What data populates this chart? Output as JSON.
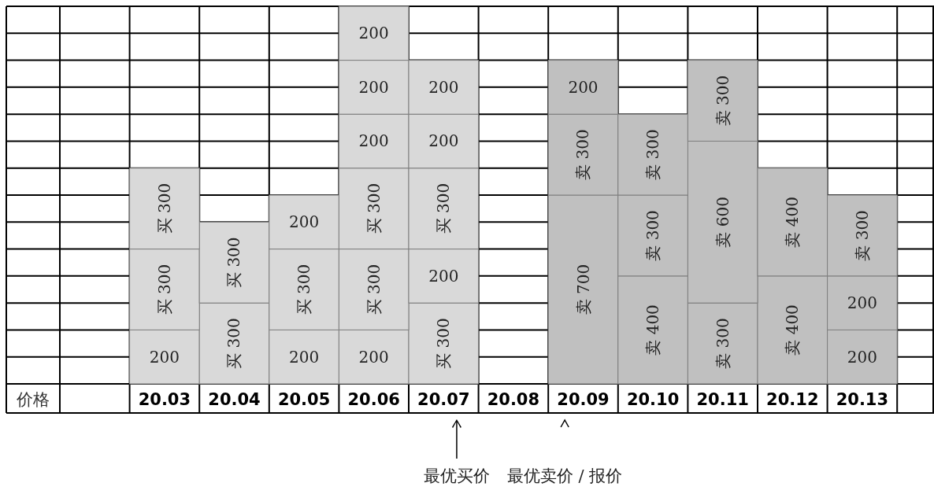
{
  "chart_data": {
    "type": "bar",
    "stacked": true,
    "xlabel": "价格",
    "grid": true,
    "tick_labels": "x",
    "categories": [
      null,
      "20.03",
      "20.04",
      "20.05",
      "20.06",
      "20.07",
      "20.08",
      "20.09",
      "20.10",
      "20.11",
      "20.12",
      "20.13",
      null
    ],
    "ylim": [
      0,
      1400
    ],
    "yticks": [
      {
        "value": 0,
        "label": null
      },
      {
        "value": 100,
        "label": null
      },
      {
        "value": 200,
        "label": null
      },
      {
        "value": 300,
        "label": null
      },
      {
        "value": 400,
        "label": null
      },
      {
        "value": 500,
        "label": null
      },
      {
        "value": 600,
        "label": null
      },
      {
        "value": 700,
        "label": null
      },
      {
        "value": 800,
        "label": null
      },
      {
        "value": 900,
        "label": null
      },
      {
        "value": 1000,
        "label": null
      },
      {
        "value": 1100,
        "label": null
      },
      {
        "value": 1200,
        "label": null
      },
      {
        "value": 1300,
        "label": null
      },
      {
        "value": 1400,
        "label": null
      }
    ],
    "series": [
      {
        "values": [
          null,
          200,
          300,
          200,
          200,
          300,
          null,
          700,
          400,
          300,
          400,
          200,
          null
        ],
        "value_labels": [
          null,
          "200",
          "买 300",
          "200",
          "200",
          "买 300",
          null,
          "卖 700",
          "卖 400",
          "卖 300",
          "卖 400",
          "200",
          null
        ],
        "colors": [
          null,
          "#d9d9d9",
          "#d9d9d9",
          "#d9d9d9",
          "#d9d9d9",
          "#d9d9d9",
          null,
          "#c0c0c0",
          "#c0c0c0",
          "#c0c0c0",
          "#c0c0c0",
          "#c0c0c0",
          null
        ]
      },
      {
        "values": [
          null,
          300,
          300,
          300,
          300,
          200,
          null,
          300,
          300,
          600,
          400,
          200,
          null
        ],
        "value_labels": [
          null,
          "买 300",
          "买 300",
          "买 300",
          "买 300",
          "200",
          null,
          "卖 300",
          "卖 300",
          "卖 600",
          "卖 400",
          "200",
          null
        ],
        "colors": [
          null,
          "#d9d9d9",
          "#d9d9d9",
          "#d9d9d9",
          "#d9d9d9",
          "#d9d9d9",
          null,
          "#c0c0c0",
          "#c0c0c0",
          "#c0c0c0",
          "#c0c0c0",
          "#c0c0c0",
          null
        ]
      },
      {
        "values": [
          null,
          300,
          null,
          200,
          300,
          300,
          null,
          200,
          300,
          300,
          null,
          300,
          null
        ],
        "value_labels": [
          null,
          "买 300",
          null,
          "200",
          "买 300",
          "买 300",
          null,
          "200",
          "卖 300",
          "卖 300",
          null,
          "卖 300",
          null
        ],
        "colors": [
          null,
          "#d9d9d9",
          null,
          "#d9d9d9",
          "#d9d9d9",
          "#d9d9d9",
          null,
          "#c0c0c0",
          "#c0c0c0",
          "#c0c0c0",
          null,
          "#c0c0c0",
          null
        ]
      },
      {
        "values": [
          null,
          null,
          null,
          null,
          200,
          200,
          null,
          null,
          null,
          null,
          null,
          null,
          null
        ],
        "value_labels": [
          null,
          null,
          null,
          null,
          "200",
          "200",
          null,
          null,
          null,
          null,
          null,
          null,
          null
        ],
        "colors": [
          null,
          null,
          null,
          null,
          "#d9d9d9",
          "#d9d9d9",
          null,
          null,
          null,
          null,
          null,
          null,
          null
        ]
      },
      {
        "values": [
          null,
          null,
          null,
          null,
          200,
          200,
          null,
          null,
          null,
          null,
          null,
          null,
          null
        ],
        "value_labels": [
          null,
          null,
          null,
          null,
          "200",
          "200",
          null,
          null,
          null,
          null,
          null,
          null,
          null
        ],
        "colors": [
          null,
          null,
          null,
          null,
          "#d9d9d9",
          "#d9d9d9",
          null,
          null,
          null,
          null,
          null,
          null,
          null
        ]
      },
      {
        "values": [
          null,
          null,
          null,
          null,
          200,
          null,
          null,
          null,
          null,
          null,
          null,
          null,
          null
        ],
        "value_labels": [
          null,
          null,
          null,
          null,
          "200",
          null,
          null,
          null,
          null,
          null,
          null,
          null,
          null
        ],
        "colors": [
          null,
          null,
          null,
          null,
          "#d9d9d9",
          null,
          null,
          null,
          null,
          null,
          null,
          null,
          null
        ]
      }
    ],
    "annotations": [
      "最优买价",
      "最优卖价 / 报价"
    ]
  }
}
